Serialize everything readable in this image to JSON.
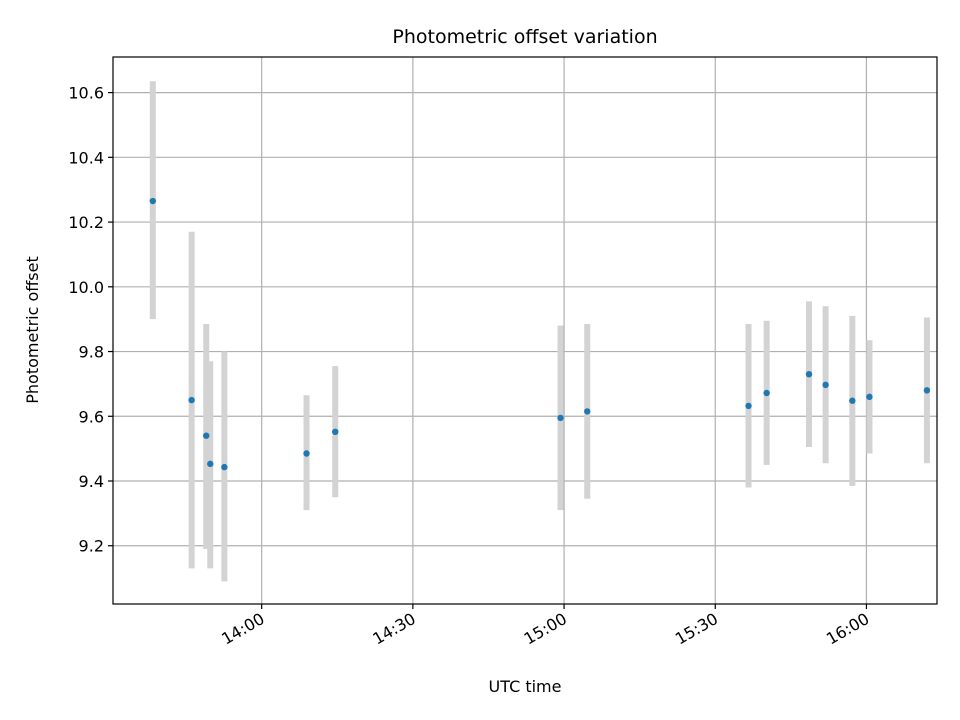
{
  "chart_data": {
    "type": "scatter",
    "title": "Photometric offset variation",
    "xlabel": "UTC time",
    "ylabel": "Photometric offset",
    "x_range_minutes": [
      810.5,
      974.0
    ],
    "ylim": [
      9.02,
      10.71
    ],
    "grid": true,
    "x_ticks": [
      {
        "minute": 840,
        "label": "14:00"
      },
      {
        "minute": 870,
        "label": "14:30"
      },
      {
        "minute": 900,
        "label": "15:00"
      },
      {
        "minute": 930,
        "label": "15:30"
      },
      {
        "minute": 960,
        "label": "16:00"
      }
    ],
    "y_ticks": [
      {
        "value": 9.2,
        "label": "9.2"
      },
      {
        "value": 9.4,
        "label": "9.4"
      },
      {
        "value": 9.6,
        "label": "9.6"
      },
      {
        "value": 9.8,
        "label": "9.8"
      },
      {
        "value": 10.0,
        "label": "10.0"
      },
      {
        "value": 10.2,
        "label": "10.2"
      },
      {
        "value": 10.4,
        "label": "10.4"
      },
      {
        "value": 10.6,
        "label": "10.6"
      }
    ],
    "marker_color": "#1f77b4",
    "errorbar_color": "#d3d3d3",
    "points": [
      {
        "minute": 818.4,
        "y": 10.265,
        "yerr_low": 9.9,
        "yerr_high": 10.635
      },
      {
        "minute": 826.1,
        "y": 9.65,
        "yerr_low": 9.13,
        "yerr_high": 10.17
      },
      {
        "minute": 829.0,
        "y": 9.54,
        "yerr_low": 9.19,
        "yerr_high": 9.885
      },
      {
        "minute": 829.8,
        "y": 9.453,
        "yerr_low": 9.13,
        "yerr_high": 9.77
      },
      {
        "minute": 832.6,
        "y": 9.443,
        "yerr_low": 9.09,
        "yerr_high": 9.8
      },
      {
        "minute": 848.9,
        "y": 9.485,
        "yerr_low": 9.31,
        "yerr_high": 9.665
      },
      {
        "minute": 854.6,
        "y": 9.552,
        "yerr_low": 9.35,
        "yerr_high": 9.755
      },
      {
        "minute": 899.3,
        "y": 9.595,
        "yerr_low": 9.31,
        "yerr_high": 9.88
      },
      {
        "minute": 904.6,
        "y": 9.615,
        "yerr_low": 9.345,
        "yerr_high": 9.885
      },
      {
        "minute": 936.6,
        "y": 9.632,
        "yerr_low": 9.38,
        "yerr_high": 9.885
      },
      {
        "minute": 940.2,
        "y": 9.672,
        "yerr_low": 9.45,
        "yerr_high": 9.895
      },
      {
        "minute": 948.6,
        "y": 9.73,
        "yerr_low": 9.505,
        "yerr_high": 9.955
      },
      {
        "minute": 951.9,
        "y": 9.697,
        "yerr_low": 9.455,
        "yerr_high": 9.94
      },
      {
        "minute": 957.2,
        "y": 9.648,
        "yerr_low": 9.385,
        "yerr_high": 9.91
      },
      {
        "minute": 960.6,
        "y": 9.66,
        "yerr_low": 9.485,
        "yerr_high": 9.835
      },
      {
        "minute": 972.0,
        "y": 9.68,
        "yerr_low": 9.455,
        "yerr_high": 9.905
      }
    ]
  }
}
